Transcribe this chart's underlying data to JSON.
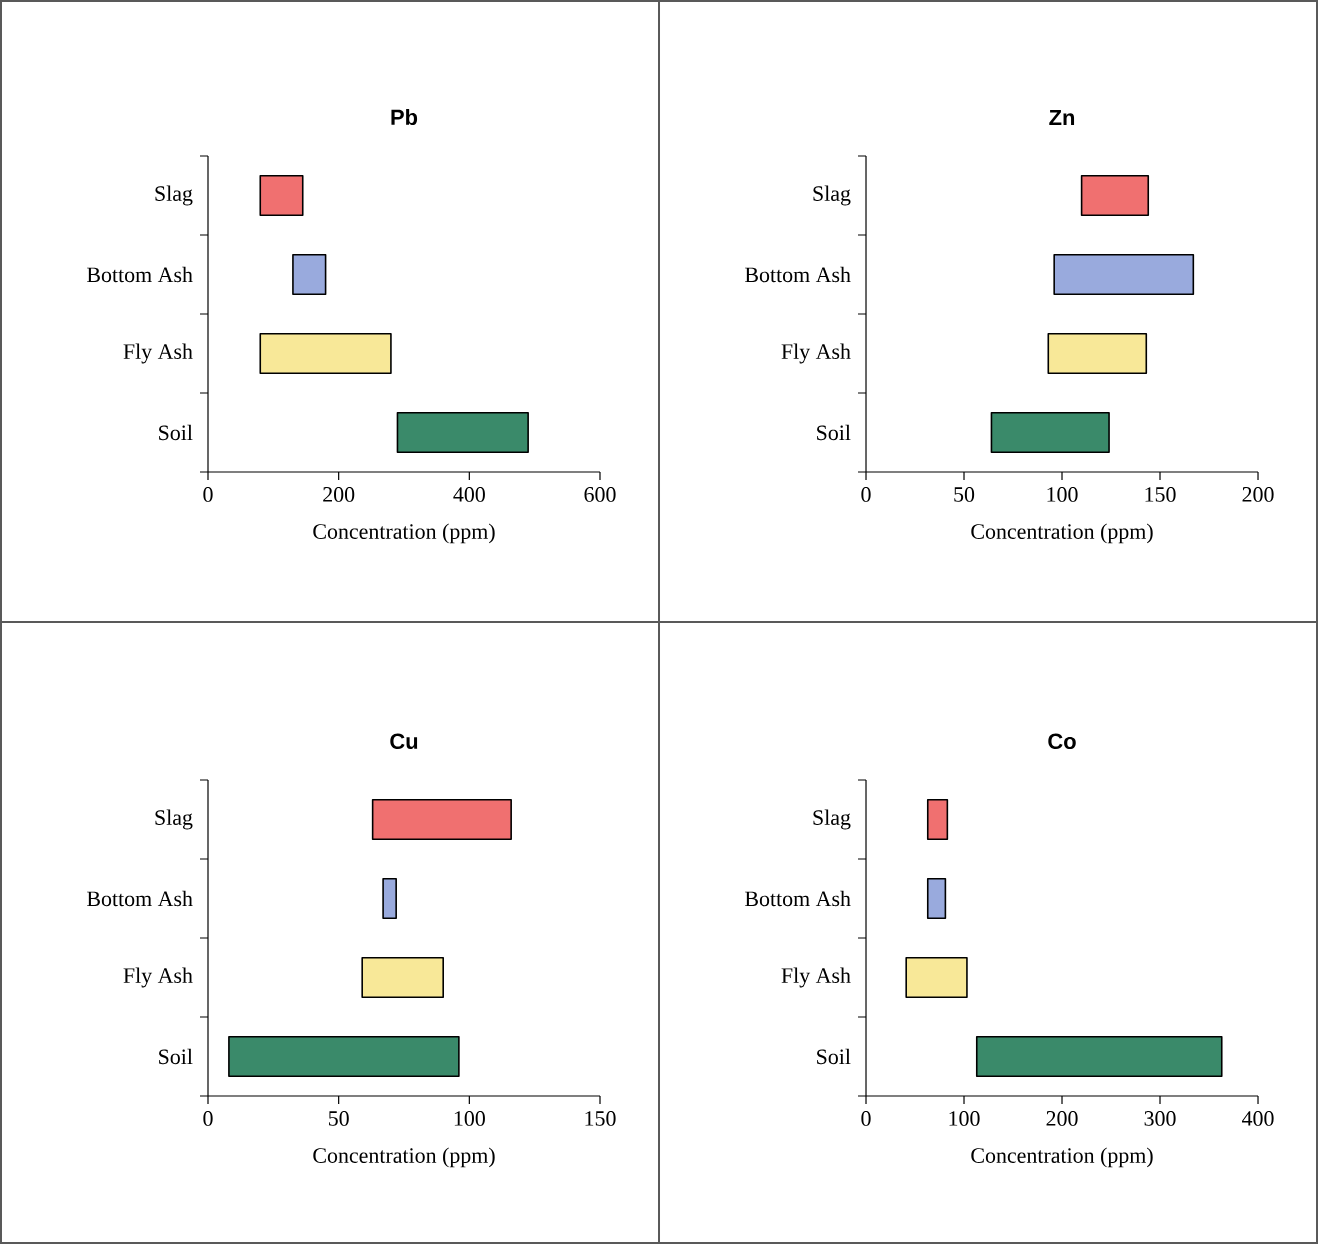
{
  "chart_data": [
    {
      "type": "bar",
      "orientation": "horizontal",
      "title": "Pb",
      "xlabel": "Concentration (ppm)",
      "categories": [
        "Slag",
        "Bottom Ash",
        "Fly Ash",
        "Soil"
      ],
      "base": [
        80,
        130,
        80,
        290
      ],
      "values": [
        65,
        50,
        200,
        200
      ],
      "colors": [
        "#f07070",
        "#99aadd",
        "#f8e898",
        "#3a8a6a"
      ],
      "xlim": [
        0,
        600
      ],
      "xticks": [
        0,
        200,
        400,
        600
      ]
    },
    {
      "type": "bar",
      "orientation": "horizontal",
      "title": "Zn",
      "xlabel": "Concentration (ppm)",
      "categories": [
        "Slag",
        "Bottom Ash",
        "Fly Ash",
        "Soil"
      ],
      "base": [
        110,
        96,
        93,
        64
      ],
      "values": [
        34,
        71,
        50,
        60
      ],
      "colors": [
        "#f07070",
        "#99aadd",
        "#f8e898",
        "#3a8a6a"
      ],
      "xlim": [
        0,
        200
      ],
      "xticks": [
        0,
        50,
        100,
        150,
        200
      ]
    },
    {
      "type": "bar",
      "orientation": "horizontal",
      "title": "Cu",
      "xlabel": "Concentration (ppm)",
      "categories": [
        "Slag",
        "Bottom Ash",
        "Fly Ash",
        "Soil"
      ],
      "base": [
        63,
        67,
        59,
        8
      ],
      "values": [
        53,
        5,
        31,
        88
      ],
      "colors": [
        "#f07070",
        "#99aadd",
        "#f8e898",
        "#3a8a6a"
      ],
      "xlim": [
        0,
        150
      ],
      "xticks": [
        0,
        50,
        100,
        150
      ]
    },
    {
      "type": "bar",
      "orientation": "horizontal",
      "title": "Co",
      "xlabel": "Concentration (ppm)",
      "categories": [
        "Slag",
        "Bottom Ash",
        "Fly Ash",
        "Soil"
      ],
      "base": [
        63,
        63,
        41,
        113
      ],
      "values": [
        20,
        18,
        62,
        250
      ],
      "colors": [
        "#f07070",
        "#99aadd",
        "#f8e898",
        "#3a8a6a"
      ],
      "xlim": [
        0,
        400
      ],
      "xticks": [
        0,
        100,
        200,
        300,
        400
      ]
    }
  ]
}
